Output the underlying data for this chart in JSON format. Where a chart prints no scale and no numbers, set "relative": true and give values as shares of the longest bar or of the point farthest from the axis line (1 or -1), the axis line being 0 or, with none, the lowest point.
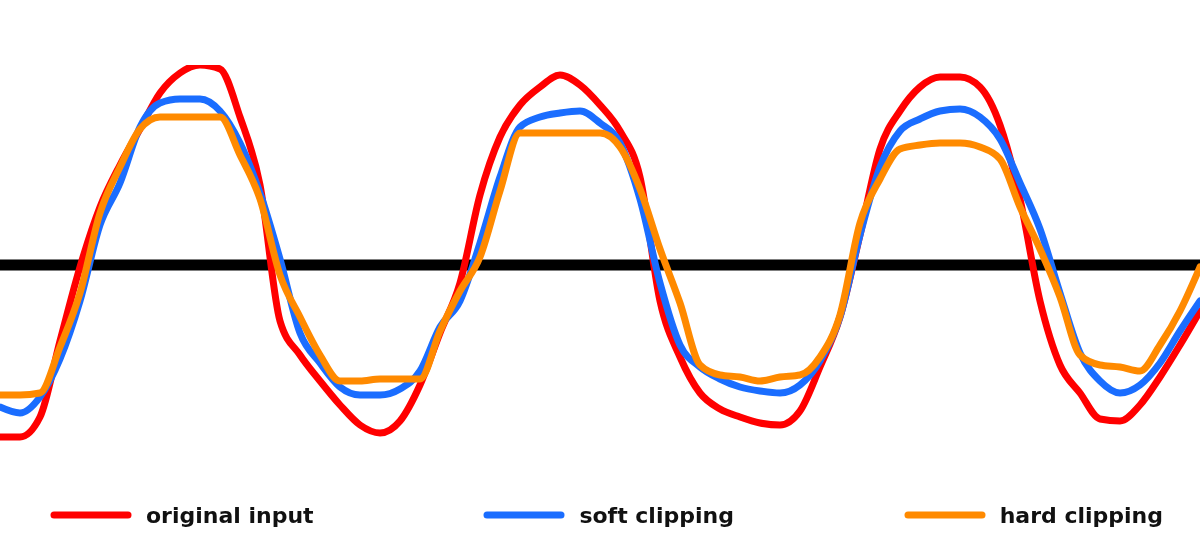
{
  "chart_data": {
    "type": "line",
    "relative": true,
    "tick_labels": false,
    "legend": "bottom",
    "categories": [
      null,
      null,
      null,
      null,
      null,
      null,
      null,
      null,
      null,
      null,
      null,
      null,
      null,
      null,
      null,
      null,
      null,
      null,
      null,
      null,
      null,
      null,
      null,
      null,
      null,
      null,
      null,
      null,
      null,
      null,
      null,
      null,
      null,
      null,
      null,
      null,
      null,
      null,
      null,
      null,
      null,
      null,
      null,
      null,
      null,
      null,
      null,
      null,
      null,
      null,
      null,
      null,
      null,
      null,
      null,
      null,
      null,
      null,
      null,
      null,
      null
    ],
    "series": [
      {
        "name": "original input",
        "color": "#ff0000",
        "values": [
          -0.86,
          -0.86,
          -0.76,
          -0.38,
          -0.01,
          0.29,
          0.5,
          0.68,
          0.86,
          0.96,
          1,
          0.98,
          0.74,
          0.4,
          -0.28,
          -0.45,
          -0.58,
          -0.7,
          -0.8,
          -0.84,
          -0.78,
          -0.6,
          -0.34,
          -0.09,
          0.35,
          0.64,
          0.8,
          0.89,
          0.95,
          0.9,
          0.8,
          0.67,
          0.44,
          -0.18,
          -0.46,
          -0.64,
          -0.72,
          -0.76,
          -0.79,
          -0.8,
          -0.73,
          -0.51,
          -0.26,
          0.15,
          0.58,
          0.77,
          0.89,
          0.94,
          0.94,
          0.89,
          0.7,
          0.33,
          -0.18,
          -0.5,
          -0.64,
          -0.77,
          -0.78,
          -0.7,
          -0.56,
          -0.4,
          -0.23
        ]
      },
      {
        "name": "soft clipping",
        "color": "#1a6dff",
        "values": [
          -0.71,
          -0.74,
          -0.66,
          -0.47,
          -0.18,
          0.2,
          0.41,
          0.69,
          0.81,
          0.83,
          0.83,
          0.77,
          0.61,
          0.36,
          0.03,
          -0.34,
          -0.49,
          -0.61,
          -0.65,
          -0.65,
          -0.62,
          -0.53,
          -0.31,
          -0.18,
          0.11,
          0.44,
          0.69,
          0.74,
          0.76,
          0.77,
          0.71,
          0.61,
          0.33,
          -0.09,
          -0.4,
          -0.51,
          -0.57,
          -0.61,
          -0.63,
          -0.64,
          -0.6,
          -0.48,
          -0.26,
          0.15,
          0.49,
          0.67,
          0.73,
          0.77,
          0.78,
          0.74,
          0.63,
          0.41,
          0.18,
          -0.14,
          -0.44,
          -0.58,
          -0.64,
          -0.6,
          -0.49,
          -0.33,
          -0.18
        ]
      },
      {
        "name": "hard clipping",
        "color": "#ff8a00",
        "values": [
          -0.65,
          -0.65,
          -0.64,
          -0.41,
          -0.14,
          0.26,
          0.49,
          0.68,
          0.74,
          0.74,
          0.74,
          0.74,
          0.55,
          0.33,
          -0.05,
          -0.26,
          -0.45,
          -0.58,
          -0.58,
          -0.57,
          -0.57,
          -0.57,
          -0.33,
          -0.13,
          0.04,
          0.37,
          0.66,
          0.66,
          0.66,
          0.66,
          0.66,
          0.59,
          0.38,
          0.08,
          -0.19,
          -0.5,
          -0.55,
          -0.56,
          -0.58,
          -0.56,
          -0.55,
          -0.46,
          -0.25,
          0.21,
          0.43,
          0.58,
          0.6,
          0.61,
          0.61,
          0.59,
          0.53,
          0.29,
          0.08,
          -0.16,
          -0.45,
          -0.5,
          -0.51,
          -0.53,
          -0.4,
          -0.23,
          -0.01
        ]
      }
    ]
  }
}
